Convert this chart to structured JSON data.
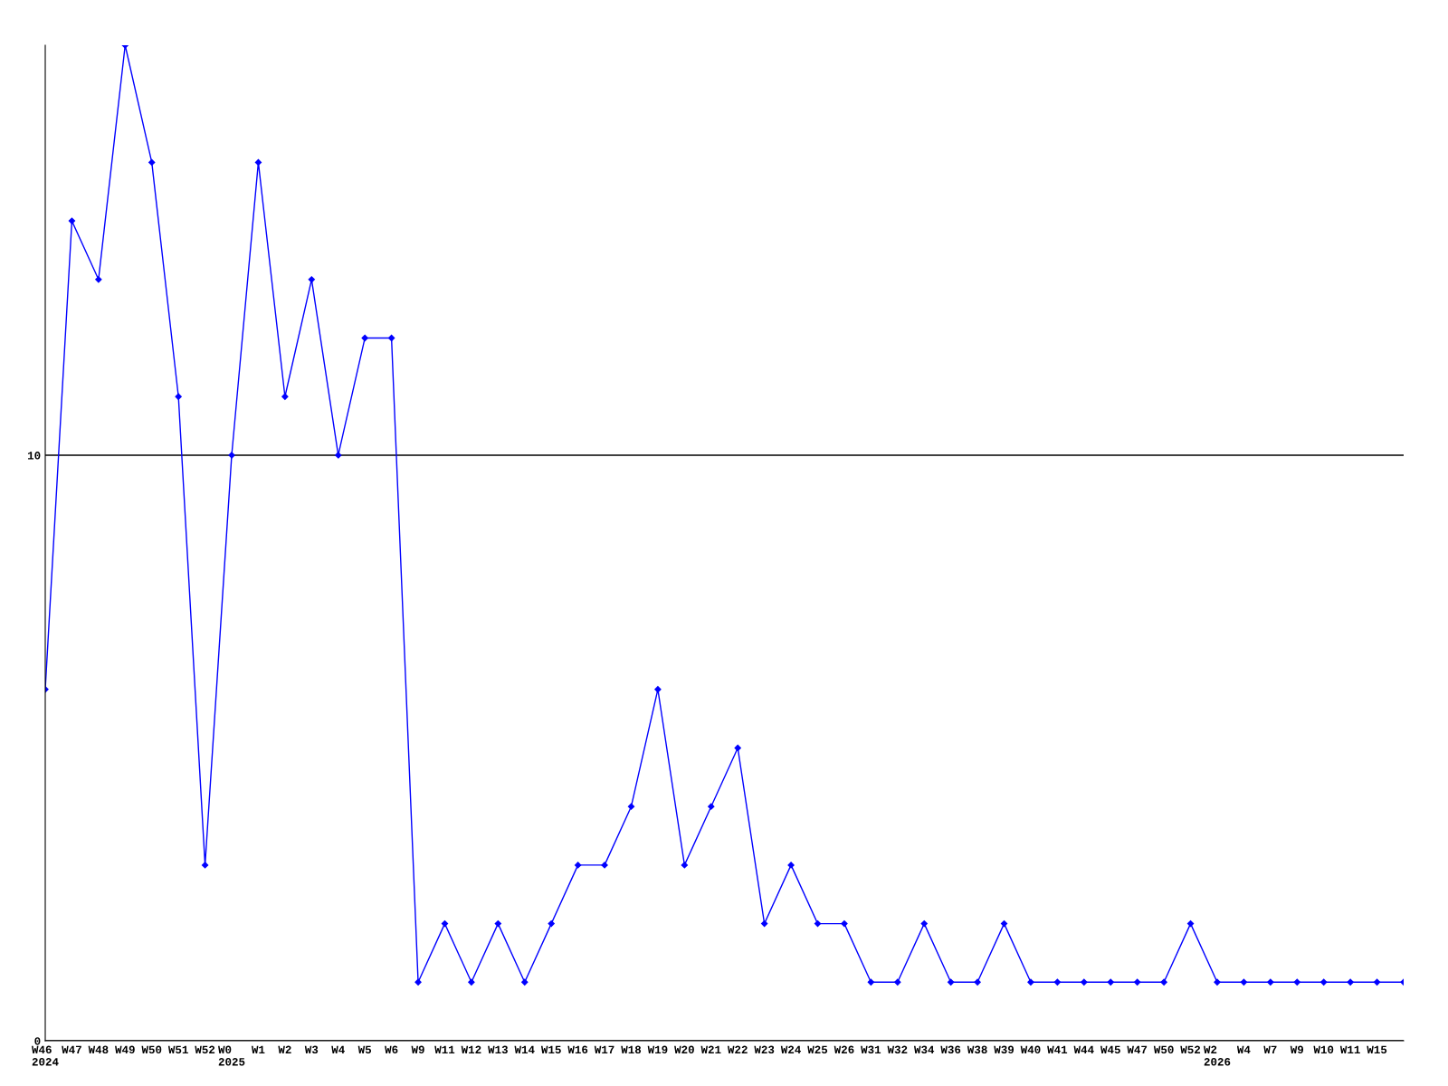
{
  "chart_data": {
    "type": "line",
    "categories": [
      "W46\n2024",
      "W47",
      "W48",
      "W49",
      "W50",
      "W51",
      "W52",
      "W0\n2025",
      "W1",
      "W2",
      "W3",
      "W4",
      "W5",
      "W6",
      "W9",
      "W11",
      "W12",
      "W13",
      "W14",
      "W15",
      "W16",
      "W17",
      "W18",
      "W19",
      "W20",
      "W21",
      "W22",
      "W23",
      "W24",
      "W25",
      "W26",
      "W31",
      "W32",
      "W34",
      "W36",
      "W38",
      "W39",
      "W40",
      "W41",
      "W44",
      "W45",
      "W47",
      "W50",
      "W52",
      "W2\n2026",
      "W4",
      "W7",
      "W9",
      "W10",
      "W11",
      "W15",
      null
    ],
    "series": [
      {
        "color": "#0000ff",
        "values": [
          6,
          14,
          13,
          17,
          15,
          11,
          3,
          10,
          15,
          11,
          13,
          10,
          12,
          12,
          1,
          2,
          1,
          2,
          1,
          2,
          3,
          3,
          4,
          6,
          3,
          4,
          5,
          2,
          3,
          2,
          2,
          1,
          1,
          2,
          1,
          1,
          2,
          1,
          1,
          1,
          1,
          1,
          1,
          2,
          1,
          1,
          1,
          1,
          1,
          1,
          1,
          1
        ]
      }
    ],
    "ylim": [
      0,
      17
    ],
    "yticks": [
      0,
      10
    ],
    "grid": "y",
    "marker": "diamond",
    "line_style": "solid",
    "legend": false
  }
}
